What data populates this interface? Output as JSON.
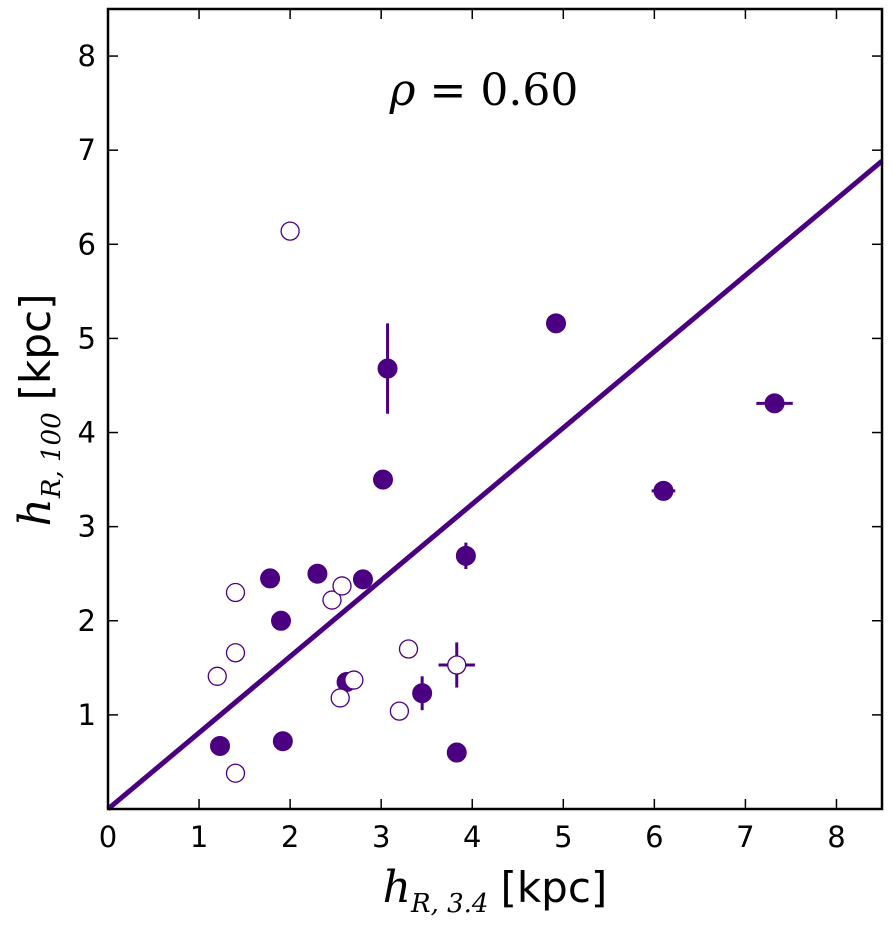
{
  "chart_data": {
    "type": "scatter",
    "xlabel": {
      "symbol": "h",
      "subscript": "R, 3.4",
      "unit": "[kpc]"
    },
    "ylabel": {
      "symbol": "h",
      "subscript": "R, 100",
      "unit": "[kpc]"
    },
    "xlim": [
      0,
      8.5
    ],
    "ylim": [
      0,
      8.5
    ],
    "xticks": [
      "0",
      "1",
      "2",
      "3",
      "4",
      "5",
      "6",
      "7",
      "8"
    ],
    "yticks": [
      "1",
      "2",
      "3",
      "4",
      "5",
      "6",
      "7",
      "8"
    ],
    "annotation": {
      "symbol": "ρ",
      "text": " = 0.60"
    },
    "color": "#4B0082",
    "fit_line": {
      "slope": 0.81,
      "intercept": 0.0
    },
    "series": [
      {
        "name": "filled",
        "marker": "filled-circle",
        "points": [
          {
            "x": 1.23,
            "y": 0.67
          },
          {
            "x": 1.92,
            "y": 0.72
          },
          {
            "x": 1.9,
            "y": 2.0
          },
          {
            "x": 1.78,
            "y": 2.45
          },
          {
            "x": 2.3,
            "y": 2.5
          },
          {
            "x": 2.8,
            "y": 2.44
          },
          {
            "x": 2.62,
            "y": 1.35
          },
          {
            "x": 3.02,
            "y": 3.5
          },
          {
            "x": 3.07,
            "y": 4.68,
            "yerr": 0.48
          },
          {
            "x": 3.45,
            "y": 1.23,
            "yerr": 0.18
          },
          {
            "x": 3.83,
            "y": 0.6
          },
          {
            "x": 3.93,
            "y": 2.69,
            "yerr": 0.14
          },
          {
            "x": 4.92,
            "y": 5.16
          },
          {
            "x": 6.1,
            "y": 3.38,
            "xerr": 0.13
          },
          {
            "x": 7.32,
            "y": 4.31,
            "xerr": 0.2
          }
        ]
      },
      {
        "name": "open",
        "marker": "open-circle",
        "points": [
          {
            "x": 2.0,
            "y": 6.14
          },
          {
            "x": 1.4,
            "y": 2.3
          },
          {
            "x": 1.4,
            "y": 1.66
          },
          {
            "x": 1.2,
            "y": 1.41
          },
          {
            "x": 1.4,
            "y": 0.38
          },
          {
            "x": 2.46,
            "y": 2.22
          },
          {
            "x": 2.57,
            "y": 2.37
          },
          {
            "x": 2.55,
            "y": 1.18
          },
          {
            "x": 2.7,
            "y": 1.37
          },
          {
            "x": 3.2,
            "y": 1.04
          },
          {
            "x": 3.3,
            "y": 1.7,
            "xerr": 0.1
          },
          {
            "x": 3.83,
            "y": 1.53,
            "xerr": 0.2,
            "yerr": 0.24
          }
        ]
      }
    ]
  }
}
